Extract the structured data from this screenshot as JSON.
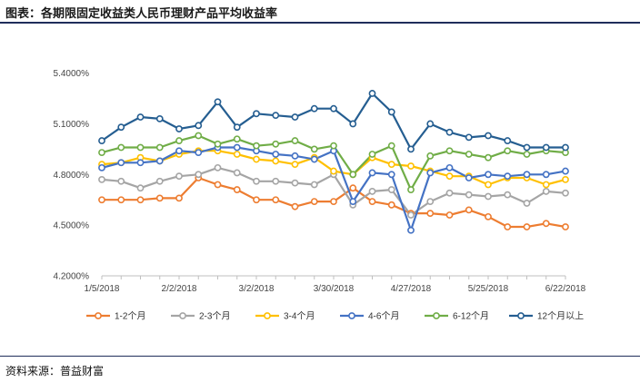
{
  "header": {
    "title": "图表：各期限固定收益类人民币理财产品平均收益率"
  },
  "footer": {
    "source": "资料来源：普益财富"
  },
  "chart_data": {
    "type": "line",
    "title": "",
    "xlabel": "",
    "ylabel": "",
    "ylim": [
      4.2,
      5.5
    ],
    "y_ticks": [
      "4.2000%",
      "4.5000%",
      "4.8000%",
      "5.1000%",
      "5.4000%"
    ],
    "y_tick_values": [
      4.2,
      4.5,
      4.8,
      5.1,
      5.4
    ],
    "x_tick_labels": [
      "1/5/2018",
      "2/2/2018",
      "3/2/2018",
      "3/30/2018",
      "4/27/2018",
      "5/25/2018",
      "6/22/2018"
    ],
    "x_tick_index": [
      0,
      4,
      8,
      12,
      16,
      20,
      24
    ],
    "x": [
      "1/5/2018",
      "1/12/2018",
      "1/19/2018",
      "1/26/2018",
      "2/2/2018",
      "2/9/2018",
      "2/16/2018",
      "2/23/2018",
      "3/2/2018",
      "3/9/2018",
      "3/16/2018",
      "3/23/2018",
      "3/30/2018",
      "4/6/2018",
      "4/13/2018",
      "4/20/2018",
      "4/27/2018",
      "5/4/2018",
      "5/11/2018",
      "5/18/2018",
      "5/25/2018",
      "6/1/2018",
      "6/8/2018",
      "6/15/2018",
      "6/22/2018"
    ],
    "grid": false,
    "legend_position": "bottom",
    "series": [
      {
        "name": "1-2个月",
        "color": "#ed7d31",
        "values": [
          4.65,
          4.65,
          4.65,
          4.66,
          4.66,
          4.78,
          4.74,
          4.71,
          4.65,
          4.65,
          4.61,
          4.64,
          4.64,
          4.72,
          4.64,
          4.62,
          4.57,
          4.57,
          4.56,
          4.59,
          4.55,
          4.49,
          4.49,
          4.51,
          4.49
        ]
      },
      {
        "name": "2-3个月",
        "color": "#a5a5a5",
        "values": [
          4.77,
          4.76,
          4.72,
          4.76,
          4.79,
          4.8,
          4.84,
          4.81,
          4.76,
          4.76,
          4.75,
          4.74,
          4.8,
          4.62,
          4.7,
          4.71,
          4.56,
          4.64,
          4.69,
          4.68,
          4.67,
          4.68,
          4.63,
          4.7,
          4.69
        ]
      },
      {
        "name": "3-4个月",
        "color": "#ffc000",
        "values": [
          4.86,
          4.87,
          4.9,
          4.88,
          4.92,
          4.94,
          4.94,
          4.92,
          4.89,
          4.88,
          4.86,
          4.9,
          4.82,
          4.8,
          4.9,
          4.86,
          4.85,
          4.82,
          4.79,
          4.79,
          4.74,
          4.78,
          4.78,
          4.74,
          4.77
        ]
      },
      {
        "name": "4-6个月",
        "color": "#4472c4",
        "values": [
          4.84,
          4.87,
          4.87,
          4.88,
          4.94,
          4.93,
          4.96,
          4.96,
          4.94,
          4.92,
          4.91,
          4.89,
          4.94,
          4.64,
          4.81,
          4.8,
          4.47,
          4.81,
          4.84,
          4.78,
          4.8,
          4.79,
          4.8,
          4.8,
          4.82
        ]
      },
      {
        "name": "6-12个月",
        "color": "#70ad47",
        "values": [
          4.93,
          4.96,
          4.96,
          4.96,
          5.0,
          5.03,
          4.98,
          5.01,
          4.97,
          4.98,
          5.0,
          4.95,
          4.97,
          4.8,
          4.92,
          4.97,
          4.71,
          4.91,
          4.94,
          4.92,
          4.9,
          4.94,
          4.92,
          4.94,
          4.93
        ]
      },
      {
        "name": "12个月以上",
        "color": "#255e91",
        "values": [
          5.0,
          5.08,
          5.14,
          5.13,
          5.07,
          5.09,
          5.23,
          5.08,
          5.16,
          5.15,
          5.14,
          5.19,
          5.19,
          5.1,
          5.28,
          5.17,
          4.95,
          5.1,
          5.05,
          5.02,
          5.03,
          5.0,
          4.96,
          4.96,
          4.96
        ]
      }
    ]
  }
}
